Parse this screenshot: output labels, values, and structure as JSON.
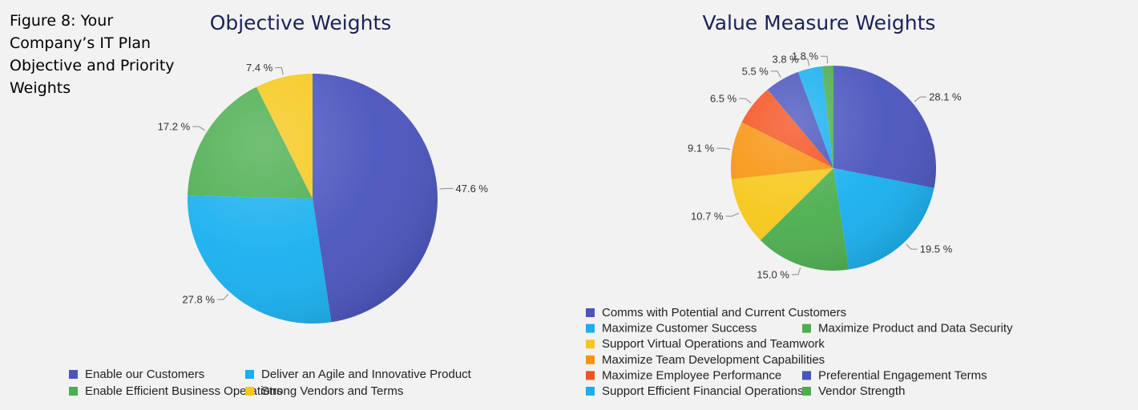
{
  "caption": "Figure 8: Your Company’s IT Plan Objective and Priority Weights",
  "chart_data": [
    {
      "type": "pie",
      "title": "Objective Weights",
      "slices": [
        {
          "label": "Enable our Customers",
          "value": 47.6,
          "value_label": "47.6 %",
          "color": "#4a55bd"
        },
        {
          "label": "Deliver an Agile and Innovative Product",
          "value": 27.8,
          "value_label": "27.8 %",
          "color": "#19b0ef"
        },
        {
          "label": "Enable Efficient Business Operations",
          "value": 17.2,
          "value_label": "17.2 %",
          "color": "#4cae4f"
        },
        {
          "label": "Strong Vendors and Terms",
          "value": 7.4,
          "value_label": "7.4 %",
          "color": "#f6c81c"
        }
      ],
      "legend_position": "bottom"
    },
    {
      "type": "pie",
      "title": "Value Measure Weights",
      "slices": [
        {
          "label": "Comms with Potential and Current Customers",
          "value": 28.1,
          "value_label": "28.1 %",
          "color": "#4a55bd"
        },
        {
          "label": "Maximize Customer Success",
          "value": 19.5,
          "value_label": "19.5 %",
          "color": "#19b0ef"
        },
        {
          "label": "Maximize Product and Data Security",
          "value": 15.0,
          "value_label": "15.0 %",
          "color": "#4cae4f"
        },
        {
          "label": "Support Virtual Operations and Teamwork",
          "value": 10.7,
          "value_label": "10.7 %",
          "color": "#f6c81c"
        },
        {
          "label": "Maximize Team Development Capabilities",
          "value": 9.1,
          "value_label": "9.1 %",
          "color": "#f7940f"
        },
        {
          "label": "Maximize Employee Performance",
          "value": 6.5,
          "value_label": "6.5 %",
          "color": "#f4511e"
        },
        {
          "label": "Preferential Engagement Terms",
          "value": 5.5,
          "value_label": "5.5 %",
          "color": "#4a55bd"
        },
        {
          "label": "Support Efficient Financial Operations",
          "value": 3.8,
          "value_label": "3.8 %",
          "color": "#19b0ef"
        },
        {
          "label": "Vendor Strength",
          "value": 1.8,
          "value_label": "1.8 %",
          "color": "#4cae4f"
        }
      ],
      "legend_position": "bottom"
    }
  ]
}
